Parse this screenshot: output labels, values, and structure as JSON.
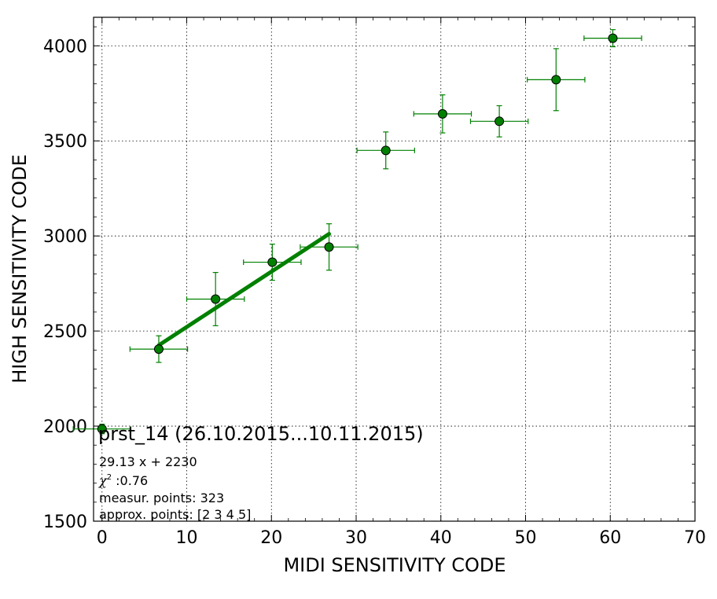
{
  "chart_data": {
    "type": "scatter",
    "xlabel": "MIDI SENSITIVITY CODE",
    "ylabel": "HIGH SENSITIVITY CODE",
    "xlim": [
      -1,
      70
    ],
    "ylim": [
      1500,
      4150
    ],
    "xticks": [
      0,
      10,
      20,
      30,
      40,
      50,
      60,
      70
    ],
    "yticks": [
      1500,
      2000,
      2500,
      3000,
      3500,
      4000
    ],
    "grid": true,
    "colors": {
      "series": "#008000",
      "fit": "#008000"
    },
    "points": [
      {
        "x": 0.0,
        "y": 1985,
        "xerr": 3.4,
        "yerr": 25
      },
      {
        "x": 6.7,
        "y": 2405,
        "xerr": 3.4,
        "yerr": 70
      },
      {
        "x": 13.4,
        "y": 2668,
        "xerr": 3.4,
        "yerr": 140
      },
      {
        "x": 20.1,
        "y": 2862,
        "xerr": 3.4,
        "yerr": 95
      },
      {
        "x": 26.8,
        "y": 2942,
        "xerr": 3.4,
        "yerr": 122
      },
      {
        "x": 33.5,
        "y": 3450,
        "xerr": 3.4,
        "yerr": 97
      },
      {
        "x": 40.2,
        "y": 3642,
        "xerr": 3.4,
        "yerr": 100
      },
      {
        "x": 46.9,
        "y": 3603,
        "xerr": 3.4,
        "yerr": 82
      },
      {
        "x": 53.6,
        "y": 3822,
        "xerr": 3.4,
        "yerr": 163
      },
      {
        "x": 60.3,
        "y": 4040,
        "xerr": 3.4,
        "yerr": 45
      }
    ],
    "fit_line": {
      "slope": 29.13,
      "intercept": 2230,
      "x_range": [
        6.7,
        26.8
      ]
    },
    "annotations": {
      "title": "prst_14 (26.10.2015...10.11.2015)",
      "equation": "29.13 x + 2230",
      "chi2_symbol": "χ",
      "chi2_sup": "2",
      "chi2_value": " :0.76",
      "measur": "measur. points: 323",
      "approx": "approx. points: [2 3 4 5]"
    }
  }
}
